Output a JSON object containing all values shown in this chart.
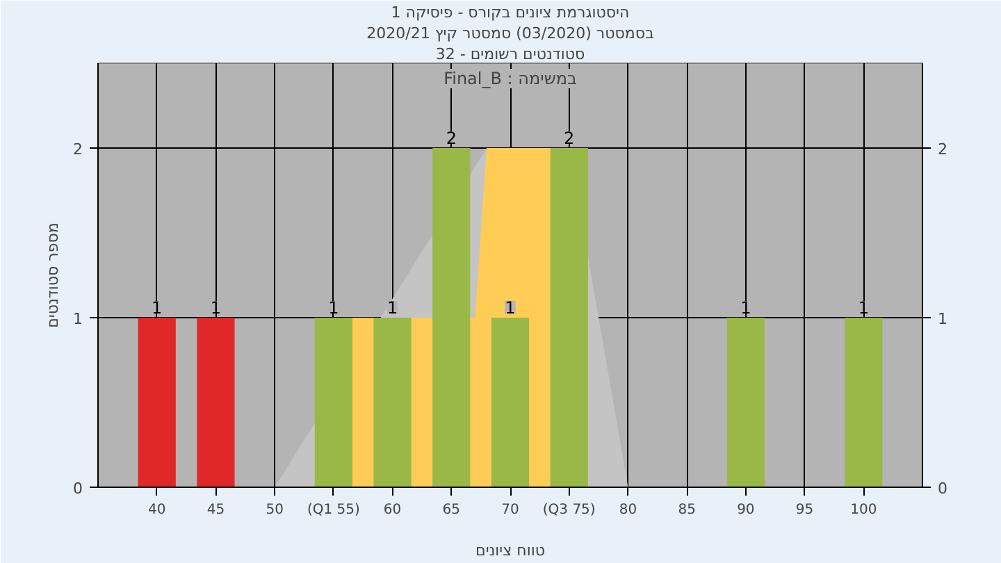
{
  "chart_data": {
    "type": "bar",
    "title": "היסטוגרמת ציונים בקורס - פיסיקה 1",
    "subtitle": "בסמסטר (03/2020) סמסטר קיץ 2020/21",
    "xlabel": "טווח ציונים",
    "ylabel": "מספר סטודנטים",
    "annotations": [
      "סטודנטים רשומים - 32",
      "Final_B : במשימה"
    ],
    "x": [
      40,
      45,
      50,
      55,
      60,
      65,
      70,
      75,
      80,
      85,
      90,
      95,
      100
    ],
    "series": [
      {
        "type": "area",
        "color": "#c4c4c4",
        "x": [
          50,
          68,
          75,
          80
        ],
        "values": [
          0,
          2,
          2,
          0
        ]
      },
      {
        "type": "area",
        "color": "#ffcc55",
        "x": [
          55,
          55,
          67,
          68,
          75,
          75
        ],
        "values": [
          0,
          1,
          1,
          2,
          2,
          0
        ]
      },
      {
        "colors": [
          "#e02828",
          "#e02828",
          "#9ab848",
          "#9ab848",
          "#9ab848",
          "#9ab848",
          "#9ab848",
          "#9ab848",
          "#9ab848",
          "#9ab848",
          "#9ab848",
          "#9ab848",
          "#9ab848"
        ],
        "values": [
          1,
          1,
          0,
          1,
          1,
          2,
          1,
          2,
          0,
          0,
          1,
          0,
          1
        ],
        "value_labels": [
          "1",
          "1",
          null,
          "1",
          "1",
          "2",
          "1",
          "2",
          null,
          null,
          "1",
          null,
          "1"
        ]
      }
    ],
    "xlim": [
      35,
      105
    ],
    "xticks": [
      40,
      45,
      50,
      {
        "value": 55,
        "label": "(Q1 55)"
      },
      60,
      65,
      70,
      {
        "value": 75,
        "label": "(Q3 75)"
      },
      80,
      85,
      90,
      95,
      100
    ],
    "ylim": [
      0,
      2.5
    ],
    "yticks": [
      0,
      1,
      2
    ],
    "y2lim": [
      0,
      2.5
    ],
    "y2ticks": [
      0,
      1,
      2
    ],
    "grid": true
  }
}
